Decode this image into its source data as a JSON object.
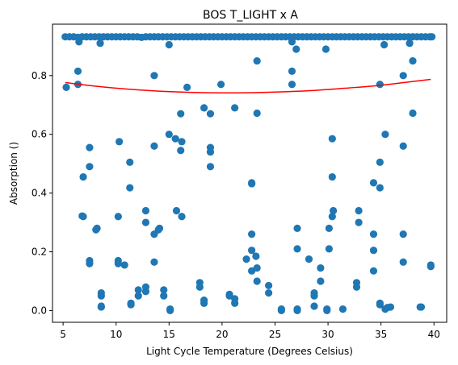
{
  "chart_data": {
    "type": "scatter",
    "title": "BOS T_LIGHT x A",
    "xlabel": "Light Cycle Temperature (Degrees Celsius)",
    "ylabel": "Absorption ()",
    "xlim": [
      4,
      41.2
    ],
    "ylim": [
      -0.04,
      0.975
    ],
    "xticks": [
      5,
      10,
      15,
      20,
      25,
      30,
      35,
      40
    ],
    "yticks": [
      0.0,
      0.2,
      0.4,
      0.6,
      0.8
    ],
    "ytick_labels": [
      "0.0",
      "0.2",
      "0.4",
      "0.6",
      "0.8"
    ],
    "grid": false,
    "colors": {
      "points": "#1f77b4",
      "fit": "#ff0000"
    },
    "points": [
      [
        5.2,
        0.932
      ],
      [
        5.6,
        0.932
      ],
      [
        6.0,
        0.932
      ],
      [
        6.4,
        0.93
      ],
      [
        6.8,
        0.932
      ],
      [
        7.2,
        0.932
      ],
      [
        7.6,
        0.932
      ],
      [
        8.0,
        0.932
      ],
      [
        8.4,
        0.932
      ],
      [
        8.8,
        0.932
      ],
      [
        9.2,
        0.932
      ],
      [
        9.6,
        0.932
      ],
      [
        10.0,
        0.932
      ],
      [
        10.4,
        0.932
      ],
      [
        10.8,
        0.932
      ],
      [
        11.2,
        0.932
      ],
      [
        11.6,
        0.932
      ],
      [
        12.0,
        0.932
      ],
      [
        12.4,
        0.93
      ],
      [
        12.8,
        0.932
      ],
      [
        13.2,
        0.932
      ],
      [
        13.6,
        0.932
      ],
      [
        14.0,
        0.932
      ],
      [
        14.4,
        0.932
      ],
      [
        14.8,
        0.932
      ],
      [
        15.2,
        0.932
      ],
      [
        15.6,
        0.932
      ],
      [
        16.0,
        0.932
      ],
      [
        16.4,
        0.932
      ],
      [
        16.8,
        0.932
      ],
      [
        17.2,
        0.932
      ],
      [
        17.6,
        0.932
      ],
      [
        18.0,
        0.932
      ],
      [
        18.4,
        0.932
      ],
      [
        18.8,
        0.932
      ],
      [
        19.2,
        0.932
      ],
      [
        19.6,
        0.932
      ],
      [
        20.0,
        0.932
      ],
      [
        20.4,
        0.932
      ],
      [
        20.8,
        0.932
      ],
      [
        21.2,
        0.932
      ],
      [
        21.6,
        0.932
      ],
      [
        22.0,
        0.932
      ],
      [
        22.4,
        0.932
      ],
      [
        22.8,
        0.932
      ],
      [
        23.2,
        0.932
      ],
      [
        23.6,
        0.932
      ],
      [
        24.0,
        0.932
      ],
      [
        24.4,
        0.932
      ],
      [
        24.8,
        0.932
      ],
      [
        25.2,
        0.932
      ],
      [
        25.6,
        0.932
      ],
      [
        26.0,
        0.932
      ],
      [
        26.4,
        0.932
      ],
      [
        26.8,
        0.932
      ],
      [
        27.2,
        0.932
      ],
      [
        27.6,
        0.932
      ],
      [
        28.0,
        0.932
      ],
      [
        28.4,
        0.932
      ],
      [
        28.8,
        0.932
      ],
      [
        29.2,
        0.932
      ],
      [
        29.6,
        0.932
      ],
      [
        30.0,
        0.932
      ],
      [
        30.4,
        0.932
      ],
      [
        30.8,
        0.932
      ],
      [
        31.2,
        0.932
      ],
      [
        31.6,
        0.932
      ],
      [
        32.0,
        0.932
      ],
      [
        32.4,
        0.932
      ],
      [
        32.8,
        0.932
      ],
      [
        33.2,
        0.932
      ],
      [
        33.6,
        0.932
      ],
      [
        34.0,
        0.932
      ],
      [
        34.4,
        0.932
      ],
      [
        34.8,
        0.932
      ],
      [
        35.2,
        0.932
      ],
      [
        35.6,
        0.932
      ],
      [
        36.0,
        0.932
      ],
      [
        36.4,
        0.932
      ],
      [
        36.8,
        0.932
      ],
      [
        37.2,
        0.932
      ],
      [
        37.6,
        0.932
      ],
      [
        38.0,
        0.932
      ],
      [
        38.4,
        0.932
      ],
      [
        38.8,
        0.932
      ],
      [
        39.2,
        0.932
      ],
      [
        39.6,
        0.932
      ],
      [
        39.8,
        0.932
      ],
      [
        6.5,
        0.915
      ],
      [
        8.5,
        0.91
      ],
      [
        15.0,
        0.905
      ],
      [
        27.0,
        0.89
      ],
      [
        29.8,
        0.89
      ],
      [
        35.3,
        0.905
      ],
      [
        37.7,
        0.91
      ],
      [
        26.6,
        0.915
      ],
      [
        5.3,
        0.76
      ],
      [
        6.4,
        0.815
      ],
      [
        6.4,
        0.77
      ],
      [
        13.6,
        0.8
      ],
      [
        16.7,
        0.76
      ],
      [
        19.9,
        0.77
      ],
      [
        23.3,
        0.85
      ],
      [
        26.6,
        0.815
      ],
      [
        26.6,
        0.77
      ],
      [
        34.9,
        0.77
      ],
      [
        37.1,
        0.8
      ],
      [
        38.0,
        0.85
      ],
      [
        18.3,
        0.69
      ],
      [
        18.9,
        0.67
      ],
      [
        21.2,
        0.69
      ],
      [
        23.3,
        0.672
      ],
      [
        38.0,
        0.672
      ],
      [
        16.1,
        0.67
      ],
      [
        15.0,
        0.6
      ],
      [
        15.6,
        0.585
      ],
      [
        16.2,
        0.575
      ],
      [
        10.3,
        0.575
      ],
      [
        7.5,
        0.555
      ],
      [
        13.6,
        0.56
      ],
      [
        16.1,
        0.545
      ],
      [
        18.9,
        0.555
      ],
      [
        18.9,
        0.54
      ],
      [
        30.4,
        0.585
      ],
      [
        35.4,
        0.6
      ],
      [
        37.1,
        0.56
      ],
      [
        7.5,
        0.49
      ],
      [
        11.3,
        0.505
      ],
      [
        18.9,
        0.49
      ],
      [
        34.9,
        0.505
      ],
      [
        6.9,
        0.455
      ],
      [
        11.3,
        0.418
      ],
      [
        22.8,
        0.435
      ],
      [
        22.8,
        0.432
      ],
      [
        30.4,
        0.455
      ],
      [
        34.3,
        0.435
      ],
      [
        34.9,
        0.418
      ],
      [
        12.8,
        0.34
      ],
      [
        13.6,
        0.26
      ],
      [
        12.8,
        0.3
      ],
      [
        14.0,
        0.275
      ],
      [
        14.1,
        0.28
      ],
      [
        10.2,
        0.32
      ],
      [
        6.9,
        0.32
      ],
      [
        6.8,
        0.322
      ],
      [
        8.1,
        0.275
      ],
      [
        8.2,
        0.28
      ],
      [
        15.7,
        0.34
      ],
      [
        16.2,
        0.32
      ],
      [
        22.8,
        0.26
      ],
      [
        22.8,
        0.205
      ],
      [
        23.2,
        0.185
      ],
      [
        22.3,
        0.175
      ],
      [
        27.1,
        0.28
      ],
      [
        27.1,
        0.21
      ],
      [
        30.1,
        0.28
      ],
      [
        30.1,
        0.21
      ],
      [
        30.5,
        0.34
      ],
      [
        30.4,
        0.32
      ],
      [
        32.9,
        0.34
      ],
      [
        32.9,
        0.3
      ],
      [
        34.3,
        0.26
      ],
      [
        34.3,
        0.205
      ],
      [
        37.1,
        0.26
      ],
      [
        7.5,
        0.17
      ],
      [
        7.5,
        0.16
      ],
      [
        10.2,
        0.17
      ],
      [
        10.2,
        0.16
      ],
      [
        10.8,
        0.155
      ],
      [
        13.6,
        0.165
      ],
      [
        12.8,
        0.065
      ],
      [
        12.8,
        0.08
      ],
      [
        12.1,
        0.07
      ],
      [
        12.1,
        0.05
      ],
      [
        8.6,
        0.06
      ],
      [
        8.6,
        0.05
      ],
      [
        8.6,
        0.015
      ],
      [
        8.6,
        0.012
      ],
      [
        11.4,
        0.02
      ],
      [
        11.4,
        0.025
      ],
      [
        14.5,
        0.07
      ],
      [
        14.5,
        0.05
      ],
      [
        15.1,
        0.005
      ],
      [
        15.1,
        0.0
      ],
      [
        17.9,
        0.095
      ],
      [
        17.9,
        0.08
      ],
      [
        18.3,
        0.035
      ],
      [
        18.3,
        0.025
      ],
      [
        20.7,
        0.055
      ],
      [
        20.7,
        0.05
      ],
      [
        21.2,
        0.04
      ],
      [
        21.2,
        0.025
      ],
      [
        22.8,
        0.135
      ],
      [
        23.3,
        0.145
      ],
      [
        23.3,
        0.1
      ],
      [
        24.4,
        0.085
      ],
      [
        24.4,
        0.06
      ],
      [
        25.6,
        0.005
      ],
      [
        25.6,
        0.0
      ],
      [
        27.1,
        0.0
      ],
      [
        27.1,
        0.005
      ],
      [
        28.2,
        0.175
      ],
      [
        28.7,
        0.06
      ],
      [
        28.7,
        0.05
      ],
      [
        28.7,
        0.015
      ],
      [
        29.3,
        0.145
      ],
      [
        29.3,
        0.1
      ],
      [
        29.9,
        0.005
      ],
      [
        29.9,
        0.0
      ],
      [
        31.4,
        0.005
      ],
      [
        32.7,
        0.095
      ],
      [
        32.7,
        0.08
      ],
      [
        34.3,
        0.135
      ],
      [
        34.9,
        0.025
      ],
      [
        34.9,
        0.02
      ],
      [
        35.4,
        0.005
      ],
      [
        35.6,
        0.01
      ],
      [
        35.9,
        0.012
      ],
      [
        37.1,
        0.165
      ],
      [
        38.7,
        0.012
      ],
      [
        38.8,
        0.012
      ],
      [
        39.7,
        0.155
      ],
      [
        39.7,
        0.15
      ]
    ],
    "fit_curve": [
      [
        5.2,
        0.776
      ],
      [
        8,
        0.764
      ],
      [
        11,
        0.754
      ],
      [
        14,
        0.747
      ],
      [
        17,
        0.743
      ],
      [
        20,
        0.741
      ],
      [
        23,
        0.742
      ],
      [
        26,
        0.745
      ],
      [
        29,
        0.75
      ],
      [
        32,
        0.758
      ],
      [
        35,
        0.767
      ],
      [
        38,
        0.78
      ],
      [
        39.7,
        0.787
      ]
    ]
  }
}
